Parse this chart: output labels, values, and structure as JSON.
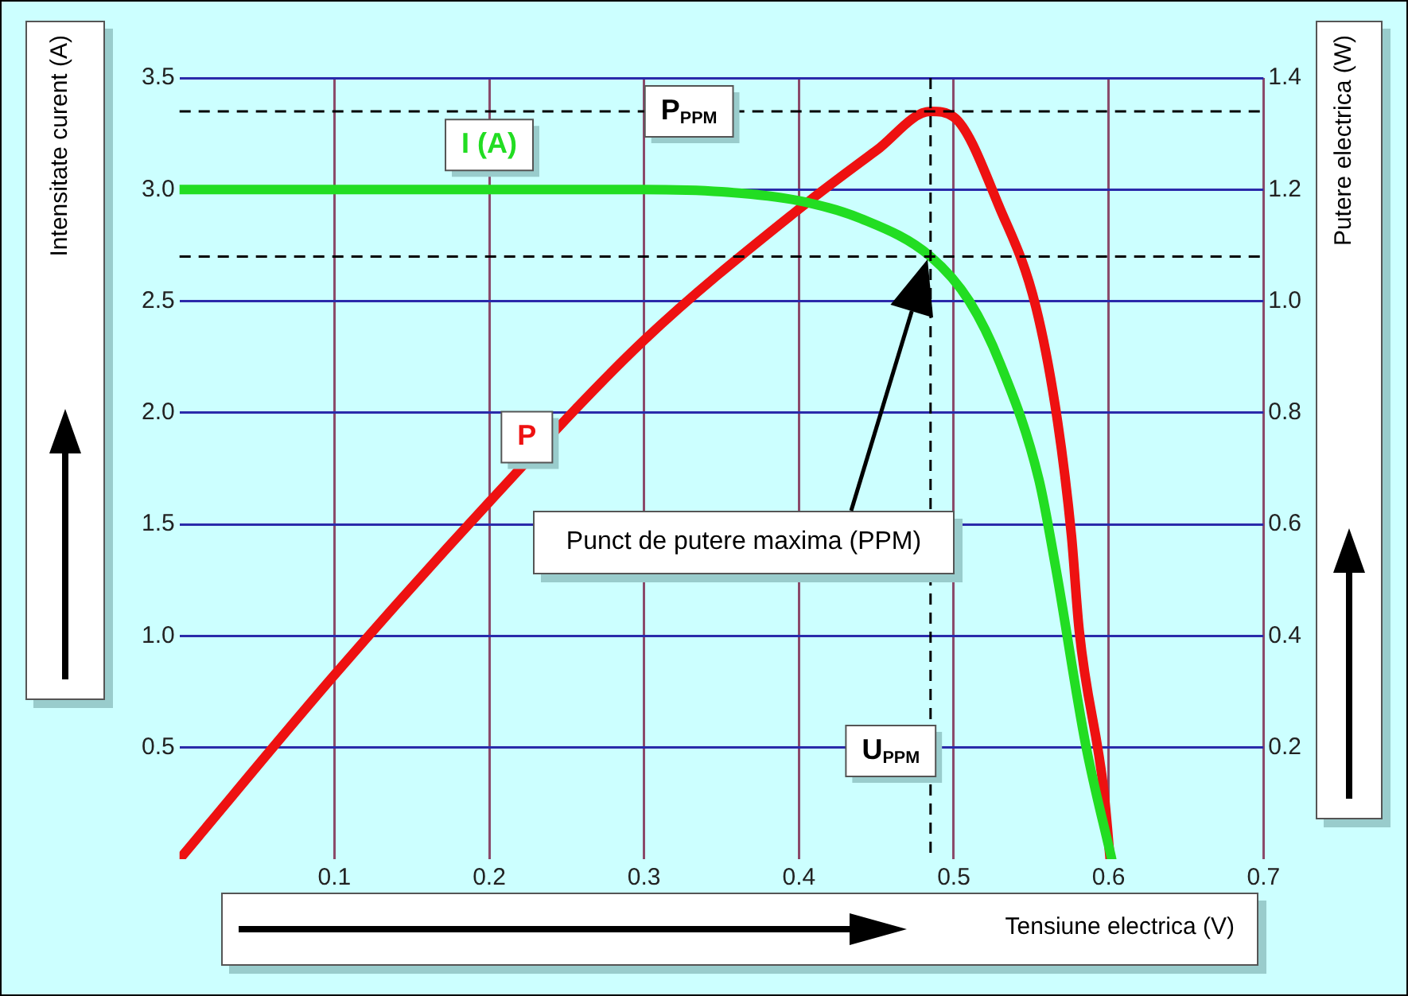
{
  "chart_data": {
    "type": "line",
    "xlabel": "Tensiune electrica (V)",
    "ylabel": "Intensitate curent (A)",
    "y2label": "Putere electrica (W)",
    "xlim": [
      0,
      0.7
    ],
    "xticks": [
      0.1,
      0.2,
      0.3,
      0.4,
      0.5,
      0.6,
      0.7
    ],
    "ylim": [
      0,
      3.5
    ],
    "yticks": [
      0.5,
      {
        "value": 1,
        "label": "1.0"
      },
      1.5,
      {
        "value": 2,
        "label": "2.0"
      },
      2.5,
      {
        "value": 3,
        "label": "3.0"
      },
      3.5
    ],
    "y2lim": [
      0,
      1.4
    ],
    "y2ticks": [
      0.2,
      0.4,
      0.6,
      0.8,
      {
        "value": 1,
        "label": "1.0"
      },
      1.2,
      1.4
    ],
    "series": [
      {
        "name": "I (A)",
        "color": "#22dd22",
        "x": [
          0,
          0.1,
          0.2,
          0.3,
          0.35,
          0.4,
          0.44,
          0.485,
          0.51,
          0.53,
          0.555,
          0.566,
          0.585,
          0.602
        ],
        "values": [
          3.0,
          3.0,
          3.0,
          3.0,
          2.99,
          2.95,
          2.87,
          2.7,
          2.5,
          2.22,
          1.7,
          1.3,
          0.52,
          0
        ]
      },
      {
        "name": "P",
        "color": "#ee1111",
        "axis": "y2",
        "x": [
          0,
          0.1,
          0.2,
          0.3,
          0.4,
          0.45,
          0.485,
          0.5,
          0.53,
          0.553,
          0.567,
          0.576,
          0.581,
          0.597,
          0.601
        ],
        "values": [
          0,
          0.33,
          0.64,
          0.93,
          1.165,
          1.27,
          1.34,
          1.33,
          1.165,
          0.99,
          0.785,
          0.58,
          0.41,
          0.12,
          0
        ]
      }
    ],
    "ref_lines": [
      {
        "axis": "y2",
        "value": 1.34,
        "label": "P$_{PPM}$",
        "line_style": "dashed",
        "color": "#000000"
      },
      {
        "axis": "y",
        "value": 2.7,
        "line_style": "dashed",
        "color": "#000000"
      },
      {
        "axis": "x",
        "value": 0.485,
        "label": "U$_{PPM}$",
        "line_style": "dashed",
        "color": "#000000"
      }
    ],
    "annotations": [
      "Punct de putere maxima (PPM)"
    ],
    "grid": true,
    "legend": false,
    "marker": "none",
    "line_style": "solid"
  }
}
